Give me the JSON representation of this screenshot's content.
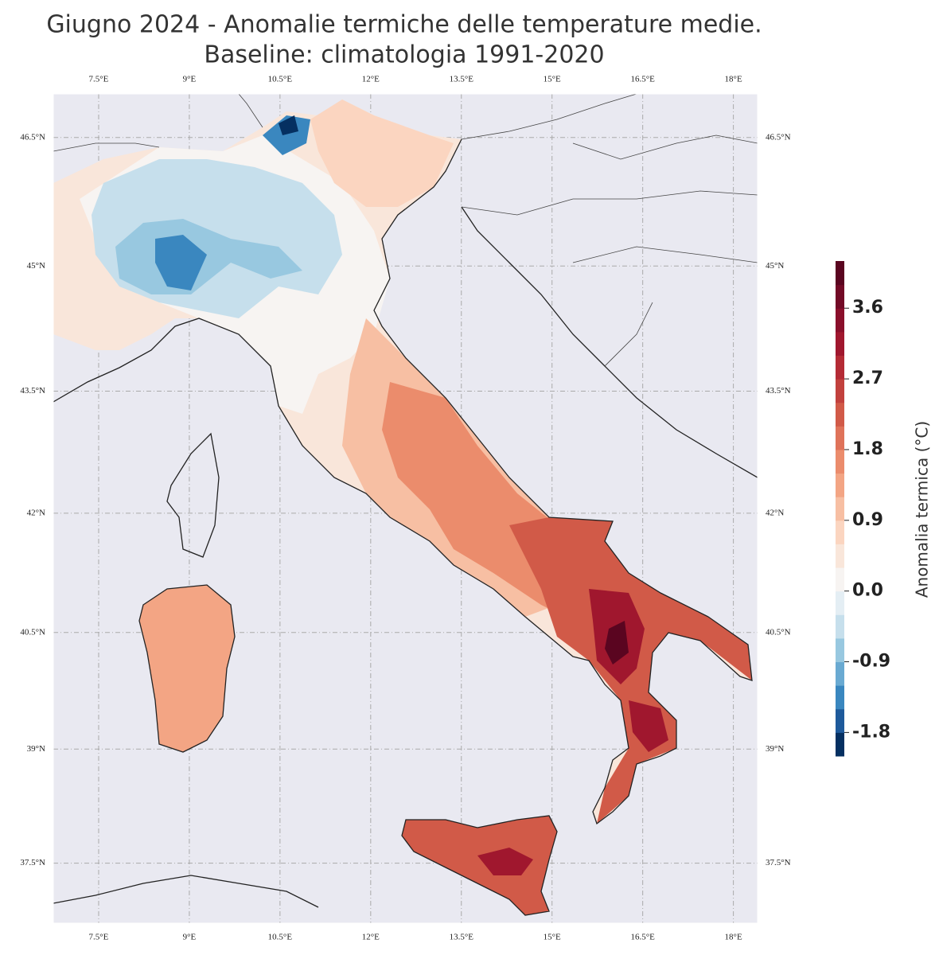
{
  "title": "Giugno 2024 - Anomalie termiche delle temperature medie.",
  "subtitle": "Baseline: climatologia 1991-2020",
  "map": {
    "xlim": [
      6.75,
      18.4
    ],
    "ylim": [
      36.7,
      47.0
    ],
    "projection": "mercator",
    "xticks": [
      {
        "value": 7.5,
        "label": "7.5°E"
      },
      {
        "value": 9,
        "label": "9°E"
      },
      {
        "value": 10.5,
        "label": "10.5°E"
      },
      {
        "value": 12,
        "label": "12°E"
      },
      {
        "value": 13.5,
        "label": "13.5°E"
      },
      {
        "value": 15,
        "label": "15°E"
      },
      {
        "value": 16.5,
        "label": "16.5°E"
      },
      {
        "value": 18,
        "label": "18°E"
      }
    ],
    "yticks": [
      {
        "value": 46.5,
        "label": "46.5°N"
      },
      {
        "value": 45,
        "label": "45°N"
      },
      {
        "value": 43.5,
        "label": "43.5°N"
      },
      {
        "value": 42,
        "label": "42°N"
      },
      {
        "value": 40.5,
        "label": "40.5°N"
      },
      {
        "value": 39,
        "label": "39°N"
      },
      {
        "value": 37.5,
        "label": "37.5°N"
      }
    ],
    "grid": true
  },
  "colorbar": {
    "label": "Anomalia termica (°C)",
    "lim": [
      -2.1,
      4.2
    ],
    "colors": [
      "#053061",
      "#1e5a9b",
      "#3a87bf",
      "#6aaad2",
      "#98c8e0",
      "#c6dfec",
      "#e4eef4",
      "#f7f4f2",
      "#f9e6da",
      "#fbd5c0",
      "#f7bfa3",
      "#f3a584",
      "#eb8c6c",
      "#df735a",
      "#d15a48",
      "#c2413d",
      "#b42b35",
      "#a0172e",
      "#8a0f2b",
      "#720a26",
      "#5a0520"
    ],
    "ticks": [
      -1.8,
      -0.9,
      {
        "value": 0,
        "label": "0.0"
      },
      0.9,
      1.8,
      2.7,
      3.6
    ]
  }
}
